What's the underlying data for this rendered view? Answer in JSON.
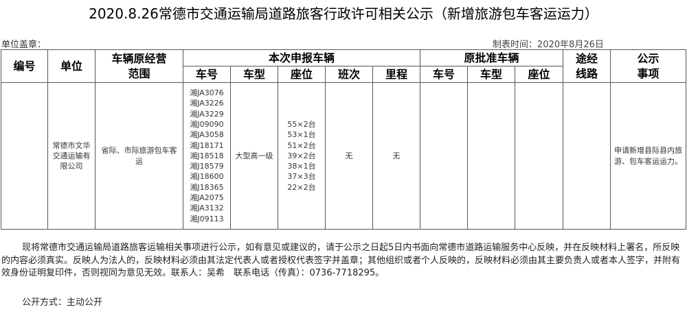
{
  "title": "2020.8.26常德市交通运输局道路旅客行政许可相关公示（新增旅游包车客运运力）",
  "seal_label": "单位盖章：",
  "date_label": "制表时间：2020年8月26日",
  "headers": {
    "no": "编号",
    "unit": "单位",
    "scope": "车辆原经营范围",
    "current": "本次申报车辆",
    "plate": "车号",
    "type": "车型",
    "seats": "座位",
    "shifts": "班次",
    "mileage": "里程",
    "original": "原批准车辆",
    "o_plate": "车号",
    "o_type": "车型",
    "o_seats": "座位",
    "route": "途经线路",
    "matter": "公示事项"
  },
  "row": {
    "no": "",
    "unit": "常德市文华交通运输有限公司",
    "scope": "省际、市际旅游包车客运",
    "plates": [
      "湘JA3076",
      "湘JA3226",
      "湘JA3229",
      "湘J09090",
      "湘JA3058",
      "湘J18171",
      "湘J18518",
      "湘J18579",
      "湘J18600",
      "湘J18365",
      "湘JA2075",
      "湘JA3132",
      "湘J09113"
    ],
    "type": "大型高一级",
    "seats": [
      "55×2台",
      "53×1台",
      "51×2台",
      "39×2台",
      "38×1台",
      "37×3台",
      "22×2台"
    ],
    "shifts": "无",
    "mileage": "无",
    "o_plate": "",
    "o_type": "",
    "o_seats": "",
    "route": "",
    "matter": "申请新增县际县内旅游、包车客运运力。"
  },
  "notice": "现将常德市交通运输局道路旅客运输相关事项进行公示，如有意见或建议的，请于公示之日起5日内书面向常德市道路运输服务中心反映，并在反映材料上署名，所反映的内容必须真实。反映人为法人的，反映材料必须由其法定代表人或者授权代表签字并盖章；其他组织或者个人反映的，反映材料必须由其主要负责人或者本人签字，并附有效身份证明复印件，否则视同为意见无效。联系人：吴希　联系电话（传真）：0736-7718295。",
  "publication": "公开方式：主动公开"
}
